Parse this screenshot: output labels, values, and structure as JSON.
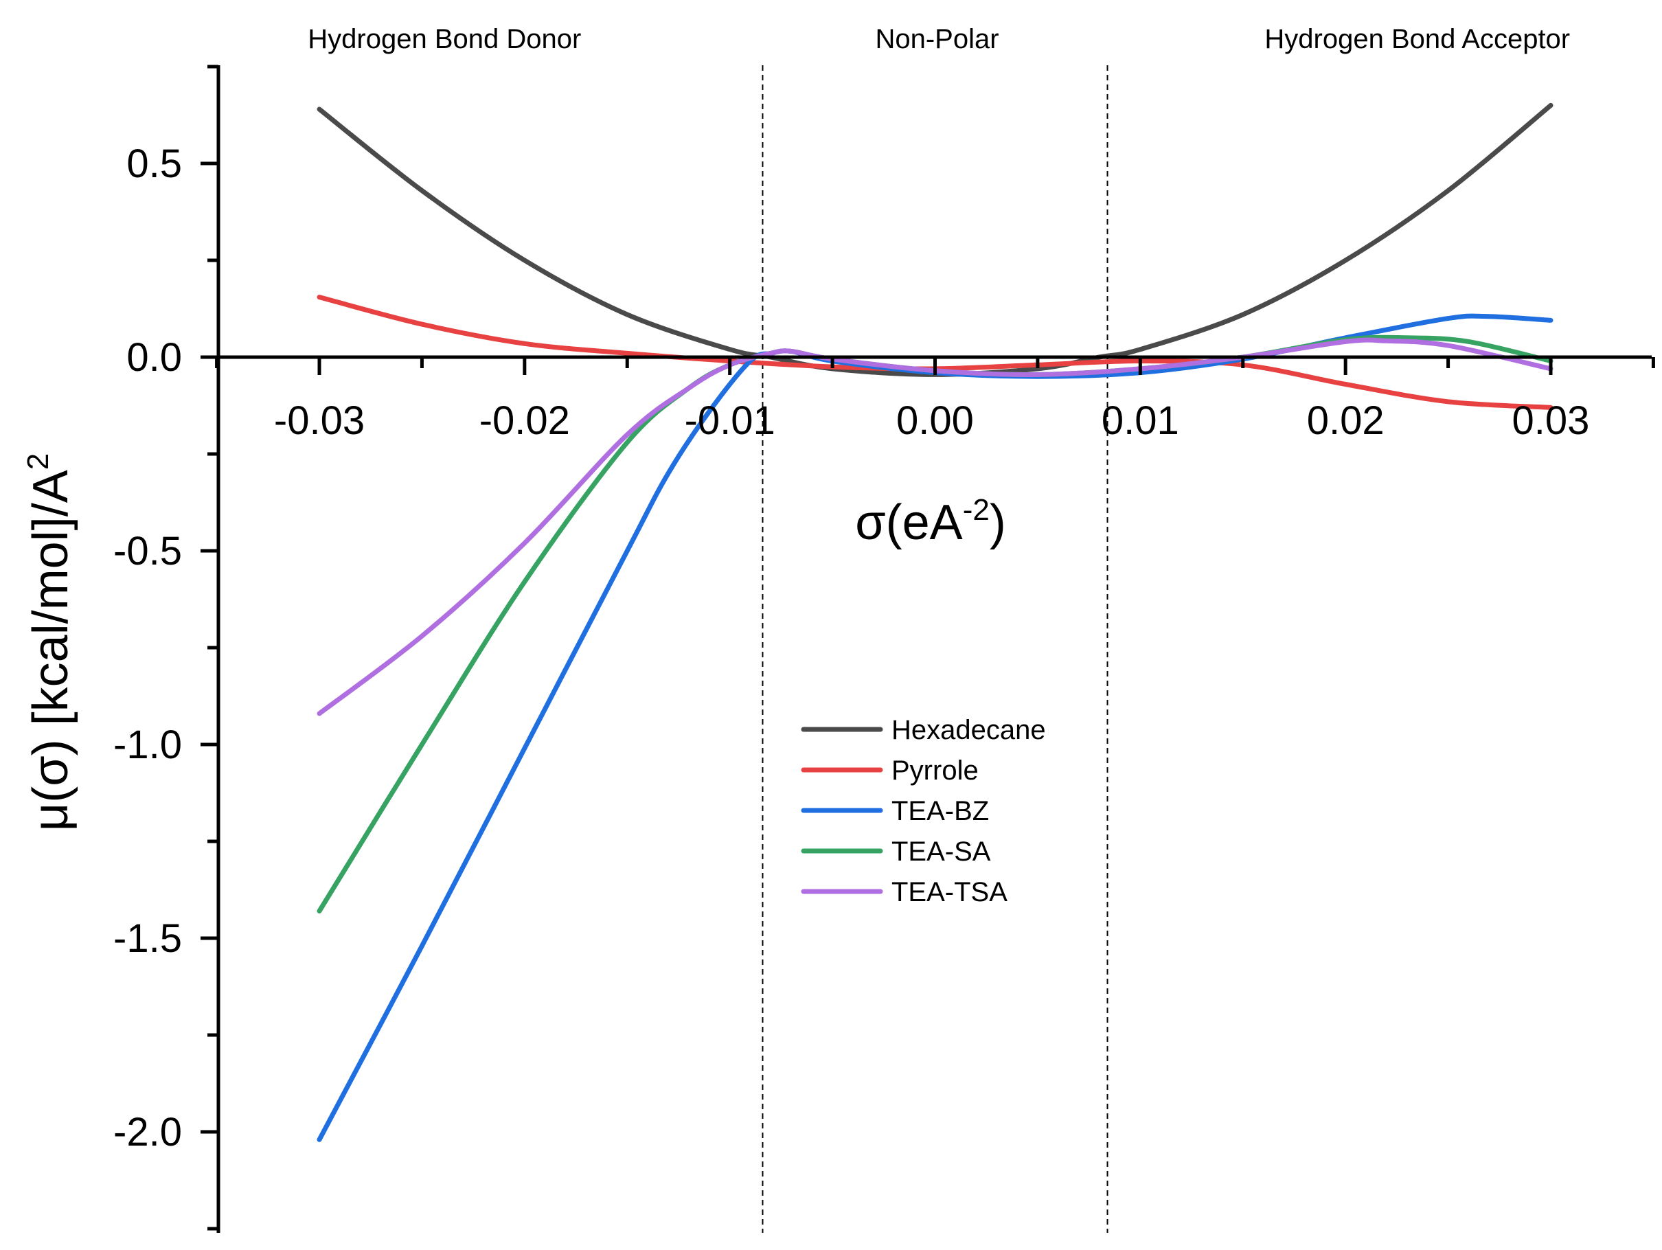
{
  "chart_data": {
    "type": "line",
    "xlabel": "σ(eA",
    "xlabel_sup": "-2",
    "xlabel_tail": ")",
    "ylabel": "μ(σ) [kcal/mol]/A",
    "ylabel_sup": "2",
    "xlim": [
      -0.035,
      0.035
    ],
    "ylim": [
      -2.25,
      0.75
    ],
    "x_ticks": [
      -0.03,
      -0.02,
      -0.01,
      0.0,
      0.01,
      0.02,
      0.03
    ],
    "x_tick_labels": [
      "-0.03",
      "-0.02",
      "-0.01",
      "0.00",
      "0.01",
      "0.02",
      "0.03"
    ],
    "y_ticks": [
      0.5,
      0.0,
      -0.5,
      -1.0,
      -1.5,
      -2.0
    ],
    "y_tick_labels": [
      "0.5",
      "0.0",
      "-0.5",
      "-1.0",
      "-1.5",
      "-2.0"
    ],
    "region_boundaries": [
      -0.0084,
      0.0084
    ],
    "regions": [
      {
        "label": "Hydrogen Bond Donor",
        "center": -0.0239
      },
      {
        "label": "Non-Polar",
        "center": 0.0001
      },
      {
        "label": "Hydrogen Bond Acceptor",
        "center": 0.0235
      }
    ],
    "legend_position": "center",
    "series": [
      {
        "name": "Hexadecane",
        "color": "#4a4a4a",
        "x": [
          -0.03,
          -0.025,
          -0.02,
          -0.015,
          -0.01,
          -0.008,
          -0.005,
          0.0,
          0.005,
          0.008,
          0.01,
          0.015,
          0.02,
          0.025,
          0.03
        ],
        "y": [
          0.64,
          0.43,
          0.25,
          0.11,
          0.02,
          0.0,
          -0.03,
          -0.045,
          -0.03,
          0.0,
          0.02,
          0.11,
          0.25,
          0.43,
          0.65
        ]
      },
      {
        "name": "Pyrrole",
        "color": "#e84141",
        "x": [
          -0.03,
          -0.025,
          -0.02,
          -0.015,
          -0.01,
          -0.005,
          0.0,
          0.005,
          0.01,
          0.015,
          0.02,
          0.025,
          0.03
        ],
        "y": [
          0.155,
          0.085,
          0.035,
          0.01,
          -0.01,
          -0.025,
          -0.03,
          -0.02,
          -0.01,
          -0.02,
          -0.07,
          -0.115,
          -0.13
        ]
      },
      {
        "name": "TEA-BZ",
        "color": "#1f6fe0",
        "x": [
          -0.03,
          -0.025,
          -0.02,
          -0.015,
          -0.013,
          -0.011,
          -0.009,
          -0.008,
          -0.007,
          -0.005,
          0.0,
          0.005,
          0.01,
          0.015,
          0.02,
          0.025,
          0.027,
          0.03
        ],
        "y": [
          -2.02,
          -1.52,
          -1.01,
          -0.5,
          -0.3,
          -0.14,
          -0.01,
          0.01,
          0.015,
          -0.01,
          -0.04,
          -0.05,
          -0.04,
          -0.005,
          0.05,
          0.1,
          0.105,
          0.095
        ]
      },
      {
        "name": "TEA-SA",
        "color": "#36a363",
        "x": [
          -0.03,
          -0.025,
          -0.02,
          -0.015,
          -0.012,
          -0.01,
          -0.008,
          -0.007,
          -0.005,
          0.0,
          0.005,
          0.01,
          0.015,
          0.02,
          0.023,
          0.026,
          0.03
        ],
        "y": [
          -1.43,
          -1.0,
          -0.58,
          -0.22,
          -0.08,
          -0.02,
          0.01,
          0.015,
          -0.005,
          -0.035,
          -0.045,
          -0.03,
          0.0,
          0.045,
          0.05,
          0.04,
          -0.01
        ]
      },
      {
        "name": "TEA-TSA",
        "color": "#b06fe0",
        "x": [
          -0.03,
          -0.025,
          -0.02,
          -0.015,
          -0.012,
          -0.01,
          -0.008,
          -0.007,
          -0.005,
          0.0,
          0.005,
          0.01,
          0.015,
          0.02,
          0.022,
          0.025,
          0.03
        ],
        "y": [
          -0.92,
          -0.72,
          -0.48,
          -0.2,
          -0.08,
          -0.02,
          0.01,
          0.015,
          -0.005,
          -0.035,
          -0.045,
          -0.03,
          0.0,
          0.04,
          0.042,
          0.03,
          -0.03
        ]
      }
    ]
  }
}
